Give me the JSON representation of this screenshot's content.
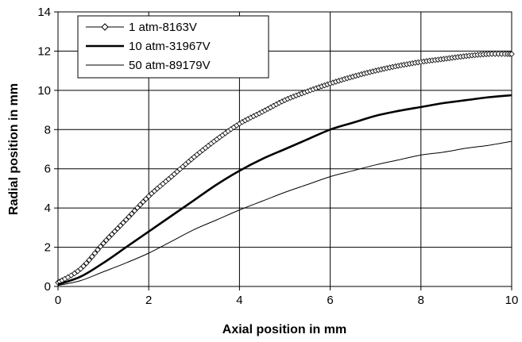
{
  "chart_data": {
    "type": "line",
    "xlabel": "Axial position in mm",
    "ylabel": "Radial position in mm",
    "xlim": [
      0,
      10
    ],
    "ylim": [
      0,
      14
    ],
    "xticks": [
      0,
      2,
      4,
      6,
      8,
      10
    ],
    "yticks": [
      0,
      2,
      4,
      6,
      8,
      10,
      12,
      14
    ],
    "grid": true,
    "legend_position": "top-left",
    "series": [
      {
        "name": "1 atm-8163V",
        "marker": "diamond-open",
        "line_weight": "thin",
        "x": [
          0,
          0.5,
          1,
          1.5,
          2,
          2.5,
          3,
          3.5,
          4,
          4.5,
          5,
          5.5,
          6,
          6.5,
          7,
          7.5,
          8,
          8.5,
          9,
          9.5,
          10
        ],
        "y": [
          0.2,
          0.9,
          2.2,
          3.4,
          4.6,
          5.6,
          6.6,
          7.5,
          8.3,
          8.9,
          9.5,
          9.95,
          10.35,
          10.7,
          11.0,
          11.25,
          11.45,
          11.6,
          11.75,
          11.85,
          11.85
        ]
      },
      {
        "name": "10 atm-31967V",
        "marker": "none",
        "line_weight": "thick",
        "x": [
          0,
          0.5,
          1,
          1.5,
          2,
          2.5,
          3,
          3.5,
          4,
          4.5,
          5,
          5.5,
          6,
          6.5,
          7,
          7.5,
          8,
          8.5,
          9,
          9.5,
          10
        ],
        "y": [
          0.1,
          0.5,
          1.2,
          2.0,
          2.8,
          3.6,
          4.4,
          5.2,
          5.9,
          6.5,
          7.0,
          7.5,
          8.0,
          8.35,
          8.7,
          8.95,
          9.15,
          9.35,
          9.5,
          9.65,
          9.75
        ]
      },
      {
        "name": "50 atm-89179V",
        "marker": "none",
        "line_weight": "thin",
        "x": [
          0,
          0.5,
          1,
          1.5,
          2,
          2.5,
          3,
          3.5,
          4,
          4.5,
          5,
          5.5,
          6,
          6.5,
          7,
          7.5,
          8,
          8.5,
          9,
          9.5,
          10
        ],
        "y": [
          0.05,
          0.3,
          0.75,
          1.2,
          1.7,
          2.3,
          2.9,
          3.4,
          3.9,
          4.35,
          4.8,
          5.2,
          5.6,
          5.9,
          6.2,
          6.45,
          6.7,
          6.85,
          7.05,
          7.2,
          7.4
        ]
      }
    ]
  }
}
